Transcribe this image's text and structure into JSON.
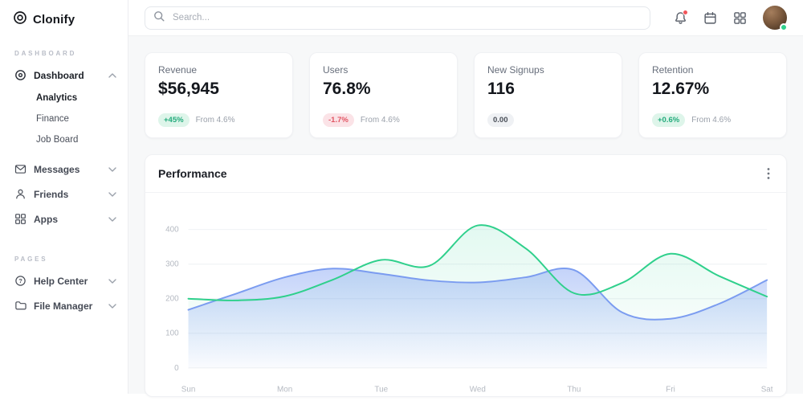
{
  "app": {
    "logo_text": "Clonify"
  },
  "topbar": {
    "search_placeholder": "Search..."
  },
  "icons": {
    "search": "magnifier",
    "notifications": "bell-with-red-dot",
    "calendar": "calendar",
    "apps": "grid-2x2",
    "user": "avatar-online",
    "more": "kebab-vertical",
    "expand": "chevron-down",
    "collapse": "chevron-up"
  },
  "colors": {
    "accent_green": "#2fd08c",
    "accent_blue": "#7b9cf0",
    "badge_up_bg": "#def5ea",
    "badge_down_bg": "#fbe3e7",
    "notification_red": "#f2555a"
  },
  "sidebar": {
    "section_dashboard": "DASHBOARD",
    "section_pages": "PAGES",
    "dashboard": "Dashboard",
    "analytics": "Analytics",
    "finance": "Finance",
    "job_board": "Job Board",
    "messages": "Messages",
    "friends": "Friends",
    "apps": "Apps",
    "help_center": "Help Center",
    "file_manager": "File Manager"
  },
  "stats": {
    "cards": [
      {
        "title": "Revenue",
        "value": "$56,945",
        "badge": "+45%",
        "badge_type": "up",
        "note": "From 4.6%"
      },
      {
        "title": "Users",
        "value": "76.8%",
        "badge": "-1.7%",
        "badge_type": "down",
        "note": "From 4.6%"
      },
      {
        "title": "New Signups",
        "value": "116",
        "badge": "0.00",
        "badge_type": "neutral",
        "note": ""
      },
      {
        "title": "Retention",
        "value": "12.67%",
        "badge": "+0.6%",
        "badge_type": "up",
        "note": "From 4.6%"
      }
    ]
  },
  "panel": {
    "title": "Performance"
  },
  "chart_data": {
    "type": "area",
    "title": "Performance",
    "xlabel": "",
    "ylabel": "",
    "categories": [
      "Sun",
      "Mon",
      "Tue",
      "Wed",
      "Thu",
      "Fri",
      "Sat"
    ],
    "y_ticks": [
      0,
      100,
      200,
      300,
      400
    ],
    "ylim": [
      0,
      460
    ],
    "grid": true,
    "legend": "none",
    "x_samples": [
      0,
      0.5,
      1,
      1.5,
      2,
      2.5,
      3,
      3.5,
      4,
      4.5,
      5,
      5.5,
      6
    ],
    "series": [
      {
        "name": "series-green",
        "color": "#2fd08c",
        "fill_from": "rgba(52,211,153,0.14)",
        "fill_to": "rgba(52,211,153,0)",
        "values": [
          200,
          195,
          207,
          255,
          312,
          295,
          412,
          345,
          216,
          246,
          330,
          266,
          206
        ]
      },
      {
        "name": "series-blue",
        "color": "#7b9cf0",
        "fill_from": "rgba(124,158,242,0.45)",
        "fill_to": "rgba(124,158,242,0.04)",
        "values": [
          168,
          215,
          262,
          287,
          272,
          253,
          247,
          262,
          283,
          160,
          142,
          185,
          254
        ]
      }
    ]
  }
}
